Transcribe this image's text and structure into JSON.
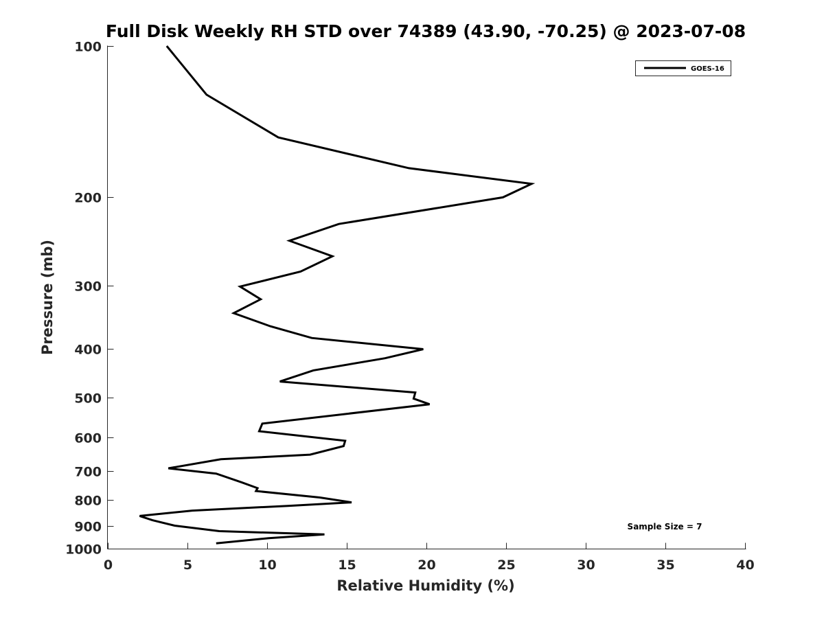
{
  "chart_data": {
    "type": "line",
    "title": "Full Disk Weekly RH STD over 74389 (43.90, -70.25) @ 2023-07-08",
    "xlabel": "Relative Humidity (%)",
    "ylabel": "Pressure (mb)",
    "xlim": [
      0,
      40
    ],
    "ylim": [
      100,
      1000
    ],
    "y_scale": "log",
    "y_reversed": true,
    "grid": false,
    "x_ticks": [
      "0",
      "5",
      "10",
      "15",
      "20",
      "25",
      "30",
      "35",
      "40"
    ],
    "y_ticks": [
      "100",
      "200",
      "300",
      "400",
      "500",
      "600",
      "700",
      "800",
      "900",
      "1000"
    ],
    "legend": {
      "position": "top-right",
      "entries": [
        "GOES-16"
      ]
    },
    "annotation": "Sample Size = 7",
    "series": [
      {
        "name": "GOES-16",
        "color": "#000000",
        "points": [
          [
            3.7,
            100
          ],
          [
            6.2,
            125
          ],
          [
            10.7,
            152
          ],
          [
            18.9,
            175
          ],
          [
            26.6,
            188
          ],
          [
            24.8,
            200
          ],
          [
            14.5,
            226
          ],
          [
            11.4,
            244
          ],
          [
            14.1,
            262
          ],
          [
            12.1,
            281
          ],
          [
            8.3,
            301
          ],
          [
            9.6,
            319
          ],
          [
            7.9,
            340
          ],
          [
            10.2,
            361
          ],
          [
            12.8,
            381
          ],
          [
            19.8,
            401
          ],
          [
            17.4,
            418
          ],
          [
            12.9,
            442
          ],
          [
            10.8,
            465
          ],
          [
            19.3,
            489
          ],
          [
            19.2,
            503
          ],
          [
            20.2,
            516
          ],
          [
            9.7,
            564
          ],
          [
            9.5,
            584
          ],
          [
            14.9,
            610
          ],
          [
            14.8,
            625
          ],
          [
            12.7,
            650
          ],
          [
            7.1,
            664
          ],
          [
            3.8,
            692
          ],
          [
            6.8,
            709
          ],
          [
            8.4,
            738
          ],
          [
            9.4,
            758
          ],
          [
            9.3,
            768
          ],
          [
            13.3,
            791
          ],
          [
            15.3,
            809
          ],
          [
            11.3,
            822
          ],
          [
            5.3,
            840
          ],
          [
            2.0,
            861
          ],
          [
            2.8,
            878
          ],
          [
            4.2,
            900
          ],
          [
            7.0,
            923
          ],
          [
            13.6,
            937
          ],
          [
            10.1,
            953
          ],
          [
            6.8,
            976
          ]
        ]
      }
    ]
  }
}
